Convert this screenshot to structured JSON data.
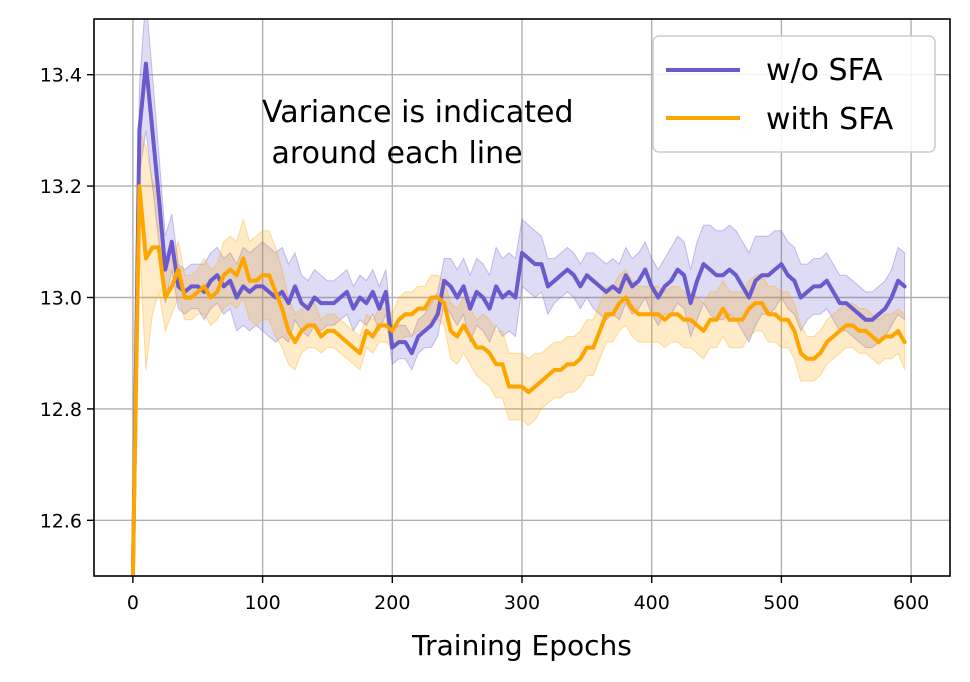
{
  "chart_data": {
    "type": "line",
    "title": "",
    "xlabel": "Training Epochs",
    "ylabel": "",
    "xlim": [
      -30,
      630
    ],
    "ylim": [
      12.5,
      13.5
    ],
    "xticks": [
      0,
      100,
      200,
      300,
      400,
      500,
      600
    ],
    "yticks": [
      12.6,
      12.8,
      13.0,
      13.2,
      13.4
    ],
    "xtick_labels": [
      "0",
      "100",
      "200",
      "300",
      "400",
      "500",
      "600"
    ],
    "ytick_labels": [
      "12.6",
      "12.8",
      "13.0",
      "13.2",
      "13.4"
    ],
    "grid": true,
    "legend_position": "top-right",
    "annotation": [
      "Variance is indicated",
      " around each line"
    ],
    "series": [
      {
        "name": "w/o SFA",
        "color": "#6a5acd",
        "x": [
          0,
          5,
          10,
          15,
          20,
          25,
          30,
          35,
          40,
          45,
          50,
          55,
          60,
          65,
          70,
          75,
          80,
          85,
          90,
          95,
          100,
          105,
          110,
          115,
          120,
          125,
          130,
          135,
          140,
          145,
          150,
          155,
          160,
          165,
          170,
          175,
          180,
          185,
          190,
          195,
          200,
          205,
          210,
          215,
          220,
          225,
          230,
          235,
          240,
          245,
          250,
          255,
          260,
          265,
          270,
          275,
          280,
          285,
          290,
          295,
          300,
          305,
          310,
          315,
          320,
          325,
          330,
          335,
          340,
          345,
          350,
          355,
          360,
          365,
          370,
          375,
          380,
          385,
          390,
          395,
          400,
          405,
          410,
          415,
          420,
          425,
          430,
          435,
          440,
          445,
          450,
          455,
          460,
          465,
          470,
          475,
          480,
          485,
          490,
          495,
          500,
          505,
          510,
          515,
          520,
          525,
          530,
          535,
          540,
          545,
          550,
          555,
          560,
          565,
          570,
          575,
          580,
          585,
          590,
          595
        ],
        "y": [
          12.5,
          13.3,
          13.42,
          13.3,
          13.18,
          13.05,
          13.1,
          13.02,
          13.01,
          13.02,
          13.02,
          13.01,
          13.03,
          13.04,
          13.02,
          13.03,
          13.0,
          13.02,
          13.01,
          13.02,
          13.02,
          13.01,
          13.0,
          13.01,
          12.99,
          13.02,
          12.99,
          12.98,
          13.0,
          12.99,
          12.99,
          12.99,
          13.0,
          13.01,
          12.98,
          13.0,
          12.99,
          13.01,
          12.98,
          13.01,
          12.91,
          12.92,
          12.92,
          12.9,
          12.93,
          12.94,
          12.95,
          12.97,
          13.03,
          13.02,
          13.0,
          13.02,
          12.98,
          13.01,
          13.0,
          12.98,
          13.02,
          13.0,
          13.01,
          13.0,
          13.08,
          13.07,
          13.06,
          13.06,
          13.02,
          13.03,
          13.04,
          13.05,
          13.04,
          13.02,
          13.04,
          13.03,
          13.02,
          13.01,
          13.02,
          13.01,
          13.04,
          13.02,
          13.03,
          13.05,
          13.02,
          13.0,
          13.02,
          13.03,
          13.05,
          13.04,
          12.99,
          13.03,
          13.06,
          13.05,
          13.04,
          13.04,
          13.05,
          13.04,
          13.02,
          13.0,
          13.03,
          13.04,
          13.04,
          13.05,
          13.06,
          13.04,
          13.03,
          13.0,
          13.01,
          13.02,
          13.02,
          13.03,
          13.01,
          12.99,
          12.99,
          12.98,
          12.97,
          12.96,
          12.96,
          12.97,
          12.98,
          13.0,
          13.03,
          13.02
        ],
        "spread": [
          0,
          0.08,
          0.12,
          0.1,
          0.08,
          0.06,
          0.05,
          0.04,
          0.04,
          0.04,
          0.04,
          0.05,
          0.05,
          0.05,
          0.05,
          0.05,
          0.06,
          0.07,
          0.07,
          0.07,
          0.08,
          0.08,
          0.08,
          0.08,
          0.07,
          0.06,
          0.05,
          0.05,
          0.05,
          0.05,
          0.04,
          0.04,
          0.04,
          0.04,
          0.04,
          0.04,
          0.04,
          0.04,
          0.04,
          0.04,
          0.03,
          0.03,
          0.03,
          0.03,
          0.03,
          0.03,
          0.04,
          0.04,
          0.04,
          0.05,
          0.05,
          0.05,
          0.06,
          0.06,
          0.06,
          0.06,
          0.07,
          0.07,
          0.07,
          0.07,
          0.06,
          0.06,
          0.06,
          0.05,
          0.05,
          0.04,
          0.04,
          0.04,
          0.04,
          0.04,
          0.04,
          0.05,
          0.05,
          0.05,
          0.05,
          0.05,
          0.05,
          0.05,
          0.05,
          0.05,
          0.05,
          0.05,
          0.05,
          0.06,
          0.06,
          0.06,
          0.06,
          0.07,
          0.07,
          0.08,
          0.08,
          0.08,
          0.08,
          0.08,
          0.08,
          0.08,
          0.08,
          0.07,
          0.07,
          0.07,
          0.06,
          0.06,
          0.06,
          0.06,
          0.05,
          0.05,
          0.05,
          0.05,
          0.05,
          0.05,
          0.05,
          0.05,
          0.05,
          0.05,
          0.05,
          0.05,
          0.05,
          0.05,
          0.06,
          0.06
        ]
      },
      {
        "name": "with SFA",
        "color": "#ffa500",
        "x": [
          0,
          5,
          10,
          15,
          20,
          25,
          30,
          35,
          40,
          45,
          50,
          55,
          60,
          65,
          70,
          75,
          80,
          85,
          90,
          95,
          100,
          105,
          110,
          115,
          120,
          125,
          130,
          135,
          140,
          145,
          150,
          155,
          160,
          165,
          170,
          175,
          180,
          185,
          190,
          195,
          200,
          205,
          210,
          215,
          220,
          225,
          230,
          235,
          240,
          245,
          250,
          255,
          260,
          265,
          270,
          275,
          280,
          285,
          290,
          295,
          300,
          305,
          310,
          315,
          320,
          325,
          330,
          335,
          340,
          345,
          350,
          355,
          360,
          365,
          370,
          375,
          380,
          385,
          390,
          395,
          400,
          405,
          410,
          415,
          420,
          425,
          430,
          435,
          440,
          445,
          450,
          455,
          460,
          465,
          470,
          475,
          480,
          485,
          490,
          495,
          500,
          505,
          510,
          515,
          520,
          525,
          530,
          535,
          540,
          545,
          550,
          555,
          560,
          565,
          570,
          575,
          580,
          585,
          590,
          595
        ],
        "y": [
          12.5,
          13.2,
          13.07,
          13.09,
          13.09,
          13.0,
          13.02,
          13.05,
          13.0,
          13.0,
          13.01,
          13.02,
          13.0,
          13.01,
          13.04,
          13.05,
          13.04,
          13.07,
          13.03,
          13.03,
          13.04,
          13.04,
          13.01,
          12.98,
          12.94,
          12.92,
          12.94,
          12.95,
          12.95,
          12.93,
          12.94,
          12.94,
          12.93,
          12.92,
          12.91,
          12.9,
          12.94,
          12.93,
          12.95,
          12.95,
          12.94,
          12.96,
          12.97,
          12.97,
          12.98,
          12.98,
          13.0,
          13.0,
          12.99,
          12.94,
          12.93,
          12.95,
          12.93,
          12.91,
          12.91,
          12.9,
          12.88,
          12.88,
          12.84,
          12.84,
          12.84,
          12.83,
          12.84,
          12.85,
          12.86,
          12.87,
          12.87,
          12.88,
          12.88,
          12.89,
          12.91,
          12.91,
          12.94,
          12.97,
          12.97,
          12.99,
          13.0,
          12.98,
          12.97,
          12.97,
          12.97,
          12.97,
          12.96,
          12.97,
          12.97,
          12.96,
          12.96,
          12.95,
          12.94,
          12.96,
          12.96,
          12.98,
          12.96,
          12.96,
          12.96,
          12.98,
          12.99,
          12.99,
          12.97,
          12.97,
          12.96,
          12.96,
          12.94,
          12.9,
          12.89,
          12.89,
          12.9,
          12.92,
          12.93,
          12.94,
          12.95,
          12.95,
          12.94,
          12.94,
          12.93,
          12.92,
          12.93,
          12.93,
          12.94,
          12.92
        ],
        "spread": [
          0,
          0.1,
          0.2,
          0.12,
          0.08,
          0.06,
          0.05,
          0.05,
          0.04,
          0.04,
          0.04,
          0.05,
          0.05,
          0.05,
          0.06,
          0.06,
          0.06,
          0.07,
          0.07,
          0.08,
          0.08,
          0.08,
          0.08,
          0.07,
          0.06,
          0.05,
          0.04,
          0.04,
          0.04,
          0.03,
          0.03,
          0.03,
          0.03,
          0.03,
          0.03,
          0.03,
          0.03,
          0.03,
          0.03,
          0.03,
          0.03,
          0.04,
          0.04,
          0.04,
          0.04,
          0.04,
          0.04,
          0.04,
          0.04,
          0.05,
          0.05,
          0.05,
          0.05,
          0.05,
          0.06,
          0.06,
          0.06,
          0.06,
          0.06,
          0.06,
          0.06,
          0.06,
          0.06,
          0.05,
          0.05,
          0.05,
          0.05,
          0.05,
          0.05,
          0.05,
          0.05,
          0.05,
          0.05,
          0.05,
          0.05,
          0.05,
          0.05,
          0.05,
          0.05,
          0.05,
          0.05,
          0.05,
          0.05,
          0.05,
          0.05,
          0.05,
          0.05,
          0.05,
          0.05,
          0.05,
          0.05,
          0.05,
          0.05,
          0.05,
          0.05,
          0.05,
          0.05,
          0.05,
          0.05,
          0.05,
          0.05,
          0.05,
          0.05,
          0.05,
          0.04,
          0.04,
          0.04,
          0.04,
          0.04,
          0.04,
          0.04,
          0.04,
          0.04,
          0.04,
          0.04,
          0.04,
          0.04,
          0.04,
          0.04,
          0.05
        ]
      }
    ]
  }
}
